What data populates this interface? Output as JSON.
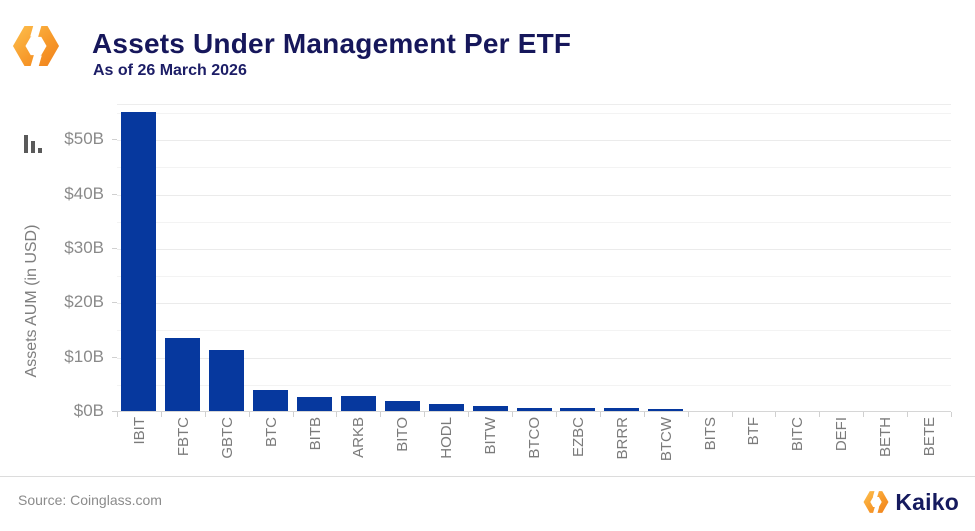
{
  "header": {
    "logo_icon": "kaiko-hexagon-icon"
  },
  "chart_data": {
    "type": "bar",
    "title": "Assets Under Management Per ETF",
    "subtitle": "As of 26 March 2026",
    "xlabel": "",
    "ylabel": "Assets AUM (in USD)",
    "categories": [
      "IBIT",
      "FBTC",
      "GBTC",
      "BTC",
      "BITB",
      "ARKB",
      "BITO",
      "HODL",
      "BITW",
      "BTCO",
      "EZBC",
      "BRRR",
      "BTCW",
      "BITS",
      "BTF",
      "BITC",
      "DEFI",
      "BETH",
      "BETE"
    ],
    "values": [
      55,
      13.5,
      11.3,
      3.9,
      2.5,
      2.8,
      1.9,
      1.3,
      0.9,
      0.6,
      0.6,
      0.6,
      0.3,
      0,
      0,
      0,
      0,
      0,
      0
    ],
    "unit": "billions USD",
    "ylim": [
      0,
      56.5
    ],
    "yticks": [
      {
        "value": 0,
        "label": "$0B"
      },
      {
        "value": 10,
        "label": "$10B"
      },
      {
        "value": 20,
        "label": "$20B"
      },
      {
        "value": 30,
        "label": "$30B"
      },
      {
        "value": 40,
        "label": "$40B"
      },
      {
        "value": 50,
        "label": "$50B"
      }
    ],
    "minor_gridlines": [
      5,
      15,
      25,
      35,
      45,
      55
    ],
    "grid": true,
    "legend": false,
    "bar_color": "#06389e"
  },
  "footer": {
    "source": "Source: Coinglass.com",
    "brand": "Kaiko"
  },
  "colors": {
    "title_navy": "#16175b",
    "bar_blue": "#06389e",
    "axis_gray": "#8a8a8a",
    "accent_orange_light": "#fdc04e",
    "accent_orange_dark": "#f0811c"
  }
}
